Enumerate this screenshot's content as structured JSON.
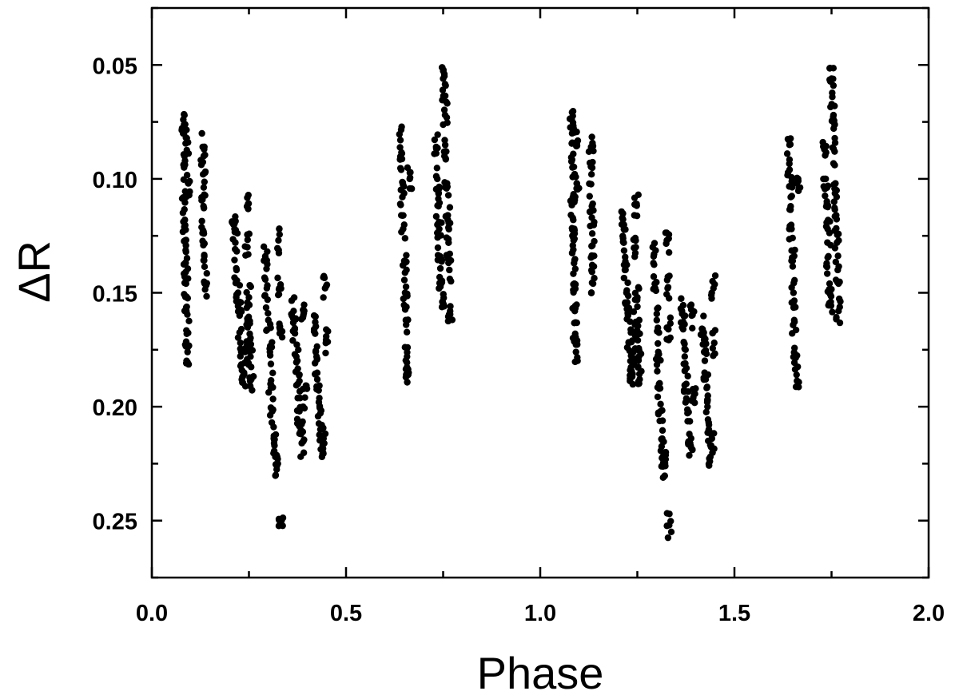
{
  "chart_data": {
    "type": "scatter",
    "title": "",
    "xlabel": "Phase",
    "ylabel": "ΔR",
    "xlim": [
      0.0,
      2.0
    ],
    "ylim": [
      0.275,
      0.025
    ],
    "y_inverted": true,
    "grid": false,
    "legend": "none",
    "marker_color": "#000000",
    "xticks": [
      {
        "value": 0.0,
        "label": "0.0"
      },
      {
        "value": 0.5,
        "label": "0.5"
      },
      {
        "value": 1.0,
        "label": "1.0"
      },
      {
        "value": 1.5,
        "label": "1.5"
      },
      {
        "value": 2.0,
        "label": "2.0"
      }
    ],
    "yticks": [
      {
        "value": 0.05,
        "label": "0.05"
      },
      {
        "value": 0.1,
        "label": "0.10"
      },
      {
        "value": 0.15,
        "label": "0.15"
      },
      {
        "value": 0.2,
        "label": "0.20"
      },
      {
        "value": 0.25,
        "label": "0.25"
      }
    ],
    "repeat_period": 1.0,
    "series": [
      {
        "marker": "filled-circle",
        "points": [
          [
            0.081,
            0.074
          ],
          [
            0.082,
            0.08
          ],
          [
            0.083,
            0.095
          ],
          [
            0.084,
            0.108
          ],
          [
            0.085,
            0.118
          ],
          [
            0.086,
            0.127
          ],
          [
            0.087,
            0.137
          ],
          [
            0.088,
            0.146
          ],
          [
            0.089,
            0.158
          ],
          [
            0.09,
            0.168
          ],
          [
            0.092,
            0.176
          ],
          [
            0.093,
            0.084
          ],
          [
            0.094,
            0.102
          ],
          [
            0.131,
            0.086
          ],
          [
            0.132,
            0.098
          ],
          [
            0.133,
            0.112
          ],
          [
            0.134,
            0.124
          ],
          [
            0.135,
            0.134
          ],
          [
            0.136,
            0.146
          ],
          [
            0.21,
            0.12
          ],
          [
            0.215,
            0.128
          ],
          [
            0.218,
            0.14
          ],
          [
            0.222,
            0.15
          ],
          [
            0.226,
            0.16
          ],
          [
            0.228,
            0.172
          ],
          [
            0.232,
            0.184
          ],
          [
            0.236,
            0.186
          ],
          [
            0.24,
            0.176
          ],
          [
            0.244,
            0.164
          ],
          [
            0.246,
            0.13
          ],
          [
            0.248,
            0.111
          ],
          [
            0.25,
            0.152
          ],
          [
            0.252,
            0.168
          ],
          [
            0.254,
            0.178
          ],
          [
            0.256,
            0.188
          ],
          [
            0.292,
            0.134
          ],
          [
            0.296,
            0.148
          ],
          [
            0.3,
            0.162
          ],
          [
            0.304,
            0.176
          ],
          [
            0.306,
            0.19
          ],
          [
            0.31,
            0.202
          ],
          [
            0.314,
            0.214
          ],
          [
            0.318,
            0.222
          ],
          [
            0.322,
            0.226
          ],
          [
            0.326,
            0.127
          ],
          [
            0.328,
            0.148
          ],
          [
            0.33,
            0.166
          ],
          [
            0.332,
            0.252
          ],
          [
            0.365,
            0.158
          ],
          [
            0.368,
            0.166
          ],
          [
            0.372,
            0.178
          ],
          [
            0.376,
            0.19
          ],
          [
            0.38,
            0.202
          ],
          [
            0.384,
            0.212
          ],
          [
            0.386,
            0.216
          ],
          [
            0.39,
            0.16
          ],
          [
            0.394,
            0.196
          ],
          [
            0.418,
            0.166
          ],
          [
            0.422,
            0.176
          ],
          [
            0.426,
            0.188
          ],
          [
            0.43,
            0.198
          ],
          [
            0.434,
            0.21
          ],
          [
            0.438,
            0.222
          ],
          [
            0.442,
            0.214
          ],
          [
            0.446,
            0.148
          ],
          [
            0.448,
            0.172
          ],
          [
            0.64,
            0.083
          ],
          [
            0.642,
            0.096
          ],
          [
            0.645,
            0.108
          ],
          [
            0.647,
            0.122
          ],
          [
            0.65,
            0.136
          ],
          [
            0.652,
            0.15
          ],
          [
            0.654,
            0.162
          ],
          [
            0.657,
            0.178
          ],
          [
            0.66,
            0.186
          ],
          [
            0.664,
            0.1
          ],
          [
            0.732,
            0.086
          ],
          [
            0.735,
            0.1
          ],
          [
            0.738,
            0.112
          ],
          [
            0.74,
            0.122
          ],
          [
            0.742,
            0.134
          ],
          [
            0.745,
            0.146
          ],
          [
            0.748,
            0.154
          ],
          [
            0.75,
            0.056
          ],
          [
            0.752,
            0.064
          ],
          [
            0.755,
            0.072
          ],
          [
            0.758,
            0.088
          ],
          [
            0.76,
            0.102
          ],
          [
            0.762,
            0.116
          ],
          [
            0.764,
            0.128
          ],
          [
            0.766,
            0.14
          ],
          [
            0.768,
            0.158
          ]
        ]
      }
    ]
  }
}
